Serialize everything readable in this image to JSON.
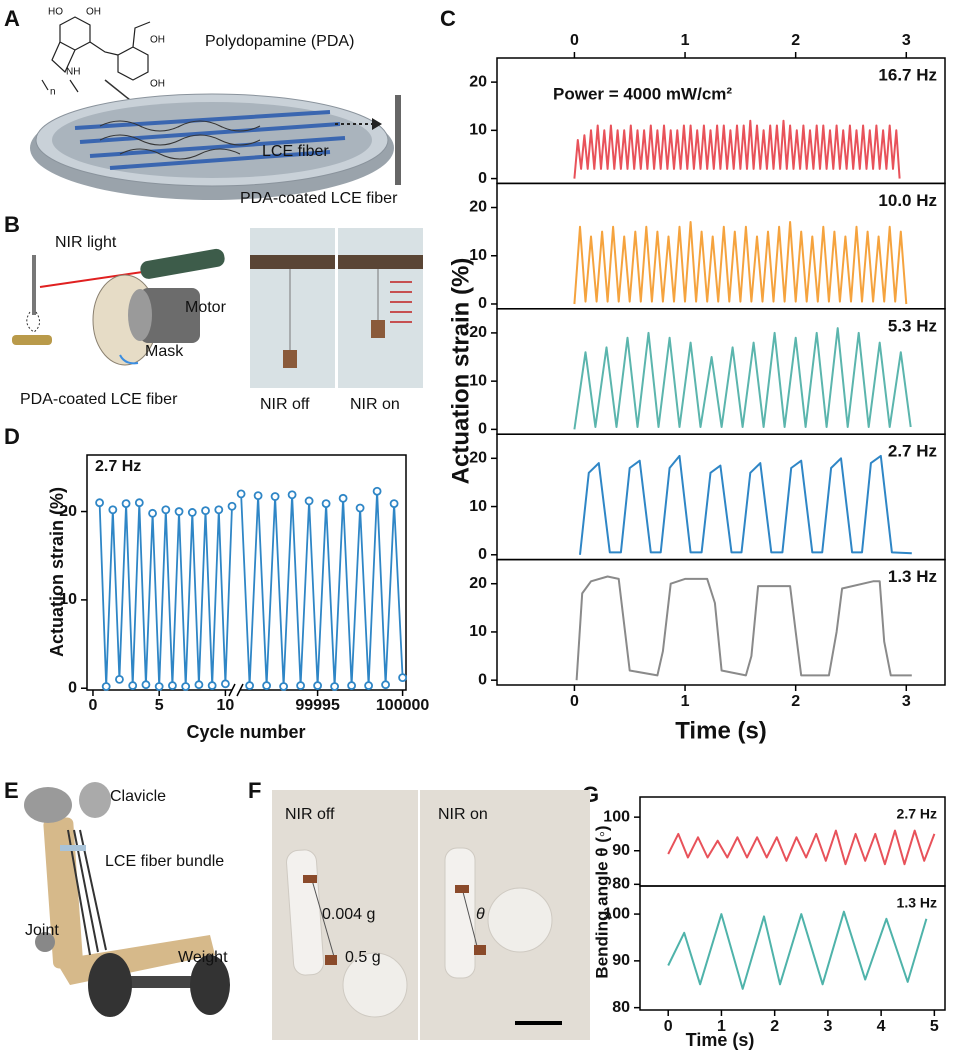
{
  "panels": [
    "A",
    "B",
    "C",
    "D",
    "E",
    "F",
    "G"
  ],
  "panel_a": {
    "title": "Polydopamine (PDA)",
    "fiber": "LCE fiber",
    "coated": "PDA-coated LCE fiber",
    "chem": [
      "HO",
      "OH",
      "NH",
      "n",
      "OH",
      "OH"
    ]
  },
  "panel_b": {
    "light": "NIR light",
    "motor": "Motor",
    "mask": "Mask",
    "fiber": "PDA-coated LCE fiber",
    "off": "NIR off",
    "on": "NIR on"
  },
  "panel_e": {
    "clavicle": "Clavicle",
    "bundle": "LCE fiber bundle",
    "joint": "Joint",
    "weight": "Weight"
  },
  "panel_f": {
    "off": "NIR off",
    "on": "NIR on",
    "fiber_mass": "0.004 g",
    "weight_mass": "0.5 g",
    "angle": "θ"
  },
  "chart_data": [
    {
      "type": "line",
      "annotation": "Power = 4000 mW/cm²",
      "xlabel": "Time (s)",
      "ylabel": "Actuation strain (%)",
      "xlim": [
        -0.7,
        3.35
      ],
      "xticks": [
        0,
        1,
        2,
        3
      ],
      "top_axis": true,
      "ylim": [
        -1,
        25
      ],
      "yticks": [
        0,
        10,
        20
      ],
      "series": [
        {
          "name": "16.7 Hz",
          "color": "#e8525a",
          "x": [
            0,
            0.03,
            0.06,
            0.09,
            0.12,
            0.15,
            0.18,
            0.21,
            0.24,
            0.27,
            0.3,
            0.33,
            0.36,
            0.39,
            0.42,
            0.45,
            0.48,
            0.51,
            0.54,
            0.57,
            0.6,
            0.63,
            0.66,
            0.69,
            0.72,
            0.75,
            0.78,
            0.81,
            0.84,
            0.87,
            0.9,
            0.93,
            0.96,
            0.99,
            1.02,
            1.05,
            1.08,
            1.11,
            1.14,
            1.17,
            1.2,
            1.23,
            1.26,
            1.29,
            1.32,
            1.35,
            1.38,
            1.41,
            1.44,
            1.47,
            1.5,
            1.53,
            1.56,
            1.59,
            1.62,
            1.65,
            1.68,
            1.71,
            1.74,
            1.77,
            1.8,
            1.83,
            1.86,
            1.89,
            1.92,
            1.95,
            1.98,
            2.01,
            2.04,
            2.07,
            2.1,
            2.13,
            2.16,
            2.19,
            2.22,
            2.25,
            2.28,
            2.31,
            2.34,
            2.37,
            2.4,
            2.43,
            2.46,
            2.49,
            2.52,
            2.55,
            2.58,
            2.61,
            2.64,
            2.67,
            2.7,
            2.73,
            2.76,
            2.79,
            2.82,
            2.85,
            2.88,
            2.91,
            2.94
          ],
          "values": [
            0,
            8,
            2,
            9,
            2,
            10,
            2,
            11,
            2,
            10,
            2,
            11,
            2,
            10,
            2,
            10,
            2,
            11,
            2,
            10,
            2,
            10,
            2,
            11,
            2,
            10,
            2,
            11,
            2,
            10,
            2,
            10,
            2,
            11,
            2,
            11,
            2,
            10,
            2,
            11,
            2,
            10,
            2,
            11,
            2,
            11,
            2,
            10,
            2,
            11,
            2,
            11,
            2,
            12,
            2,
            11,
            2,
            10,
            2,
            11,
            2,
            11,
            2,
            12,
            2,
            11,
            2,
            10,
            2,
            11,
            2,
            10,
            2,
            11,
            2,
            11,
            2,
            10,
            2,
            11,
            2,
            10,
            2,
            11,
            2,
            10,
            2,
            11,
            2,
            10,
            2,
            11,
            2,
            10,
            2,
            11,
            2,
            10,
            0
          ]
        },
        {
          "name": "10.0 Hz",
          "color": "#f5a33e",
          "x": [
            0,
            0.05,
            0.1,
            0.15,
            0.2,
            0.25,
            0.3,
            0.35,
            0.4,
            0.45,
            0.5,
            0.55,
            0.6,
            0.65,
            0.7,
            0.75,
            0.8,
            0.85,
            0.9,
            0.95,
            1,
            1.05,
            1.1,
            1.15,
            1.2,
            1.25,
            1.3,
            1.35,
            1.4,
            1.45,
            1.5,
            1.55,
            1.6,
            1.65,
            1.7,
            1.75,
            1.8,
            1.85,
            1.9,
            1.95,
            2,
            2.05,
            2.1,
            2.15,
            2.2,
            2.25,
            2.3,
            2.35,
            2.4,
            2.45,
            2.5,
            2.55,
            2.6,
            2.65,
            2.7,
            2.75,
            2.8,
            2.85,
            2.9,
            2.95,
            3
          ],
          "values": [
            0,
            16,
            0.5,
            14,
            0.5,
            15,
            0.5,
            16,
            0.5,
            14,
            0.5,
            15,
            0.5,
            16,
            0.5,
            15,
            0.5,
            14,
            0.5,
            16,
            0.5,
            17,
            0.5,
            15,
            0.5,
            14,
            0.5,
            16,
            0.5,
            15,
            0.5,
            16,
            0.5,
            14,
            0.5,
            15,
            0.5,
            16,
            0.5,
            17,
            0.5,
            15,
            0.5,
            14,
            0.5,
            16,
            0.5,
            15,
            0.5,
            14,
            0.5,
            16,
            0.5,
            15,
            0.5,
            14,
            0.5,
            16,
            0.5,
            15,
            0
          ]
        },
        {
          "name": "5.3 Hz",
          "color": "#5bb5ad",
          "x": [
            0,
            0.1,
            0.19,
            0.29,
            0.38,
            0.48,
            0.57,
            0.67,
            0.76,
            0.86,
            0.95,
            1.05,
            1.14,
            1.24,
            1.33,
            1.43,
            1.52,
            1.62,
            1.71,
            1.81,
            1.9,
            2,
            2.09,
            2.19,
            2.28,
            2.38,
            2.47,
            2.57,
            2.66,
            2.76,
            2.85,
            2.95,
            3.04
          ],
          "values": [
            0,
            16,
            0.5,
            17,
            0.5,
            19,
            0.5,
            20,
            0.5,
            19,
            0.5,
            18,
            0.5,
            15,
            0.5,
            17,
            0.5,
            18,
            0.5,
            20,
            0.5,
            19,
            0.5,
            20,
            0.5,
            21,
            0.5,
            20,
            0.5,
            18,
            0.5,
            16,
            0.5
          ]
        },
        {
          "name": "2.7 Hz",
          "color": "#2f86c6",
          "x": [
            0.05,
            0.13,
            0.22,
            0.32,
            0.42,
            0.5,
            0.59,
            0.69,
            0.78,
            0.86,
            0.95,
            1.05,
            1.15,
            1.23,
            1.32,
            1.42,
            1.51,
            1.59,
            1.68,
            1.78,
            1.88,
            1.96,
            2.05,
            2.15,
            2.24,
            2.32,
            2.41,
            2.51,
            2.6,
            2.68,
            2.77,
            2.87,
            3.05
          ],
          "values": [
            0,
            17,
            19,
            0.5,
            0.5,
            18,
            19.5,
            0.5,
            0.5,
            18,
            20.5,
            0.5,
            0.5,
            17,
            18.5,
            0.5,
            0.5,
            17,
            19,
            0.5,
            0.5,
            18,
            19.5,
            0.5,
            0.5,
            18,
            20,
            0.5,
            0.5,
            19,
            20.5,
            0.5,
            0.3
          ]
        },
        {
          "name": "1.3 Hz",
          "color": "#8a8a8a",
          "x": [
            0.02,
            0.07,
            0.15,
            0.3,
            0.4,
            0.5,
            0.75,
            0.8,
            0.87,
            1,
            1.2,
            1.27,
            1.33,
            1.55,
            1.6,
            1.66,
            1.95,
            2,
            2.05,
            2.3,
            2.37,
            2.42,
            2.7,
            2.76,
            2.8,
            2.86,
            3.05
          ],
          "values": [
            0,
            18,
            20.5,
            21.5,
            21,
            2,
            1,
            6,
            20,
            21,
            21,
            16,
            2,
            1,
            5,
            19.5,
            19.5,
            10,
            1,
            1,
            10,
            19,
            20.5,
            20.5,
            8,
            1,
            1
          ]
        }
      ]
    },
    {
      "type": "line",
      "annotation": "2.7 Hz",
      "xlabel": "Cycle number",
      "ylabel": "Actuation strain (%)",
      "markers": true,
      "ylim": [
        -0.2,
        26.4
      ],
      "yticks": [
        0,
        10,
        20
      ],
      "x_segments": [
        {
          "xlim": [
            -0.45,
            10.8
          ],
          "xticks": [
            0,
            5,
            10
          ]
        },
        {
          "xlim": [
            99990.2,
            100000.2
          ],
          "xticks": [
            99995,
            100000
          ]
        }
      ],
      "series": [
        {
          "color": "#2f86c6",
          "x": [
            0.5,
            1,
            1.5,
            2,
            2.5,
            3,
            3.5,
            4,
            4.5,
            5,
            5.5,
            6,
            6.5,
            7,
            7.5,
            8,
            8.5,
            9,
            9.5,
            10,
            10.5
          ],
          "values": [
            21,
            0.2,
            20.2,
            1.0,
            20.9,
            0.3,
            21,
            0.4,
            19.8,
            0.2,
            20.2,
            0.3,
            20,
            0.2,
            19.9,
            0.4,
            20.1,
            0.3,
            20.2,
            0.5,
            20.6
          ]
        },
        {
          "color": "#2f86c6",
          "x": [
            99990.5,
            99991,
            99991.5,
            99992,
            99992.5,
            99993,
            99993.5,
            99994,
            99994.5,
            99995,
            99995.5,
            99996,
            99996.5,
            99997,
            99997.5,
            99998,
            99998.5,
            99999,
            99999.5,
            100000
          ],
          "values": [
            22,
            0.3,
            21.8,
            0.3,
            21.7,
            0.2,
            21.9,
            0.3,
            21.2,
            0.3,
            20.9,
            0.2,
            21.5,
            0.3,
            20.4,
            0.3,
            22.3,
            0.4,
            20.9,
            1.2
          ]
        }
      ]
    },
    {
      "type": "line",
      "xlabel": "Time (s)",
      "ylabel": "Bending angle θ (◦)",
      "xlim": [
        -0.53,
        5.2
      ],
      "xticks": [
        0,
        1,
        2,
        3,
        4,
        5
      ],
      "ylim": [
        79.5,
        106
      ],
      "yticks": [
        80,
        90,
        100
      ],
      "series": [
        {
          "name": "2.7 Hz",
          "color": "#e8525a",
          "x": [
            0,
            0.19,
            0.37,
            0.56,
            0.74,
            0.93,
            1.11,
            1.3,
            1.48,
            1.67,
            1.85,
            2.04,
            2.22,
            2.41,
            2.59,
            2.78,
            2.96,
            3.15,
            3.33,
            3.52,
            3.7,
            3.89,
            4.07,
            4.26,
            4.44,
            4.63,
            4.81,
            5
          ],
          "values": [
            89,
            95,
            88,
            94,
            88,
            93,
            88,
            94,
            88,
            94,
            88,
            94,
            87,
            94,
            88,
            95,
            87,
            96,
            86,
            95,
            87,
            95,
            86,
            96,
            86,
            96,
            87,
            95
          ]
        },
        {
          "name": "1.3 Hz",
          "color": "#4fb3aa",
          "x": [
            0,
            0.3,
            0.6,
            1,
            1.4,
            1.8,
            2.1,
            2.5,
            2.9,
            3.3,
            3.7,
            4.1,
            4.5,
            4.85
          ],
          "values": [
            89,
            96,
            85,
            100,
            84,
            99.5,
            85,
            100,
            85,
            100.5,
            86,
            99,
            85.5,
            99
          ]
        }
      ]
    }
  ]
}
